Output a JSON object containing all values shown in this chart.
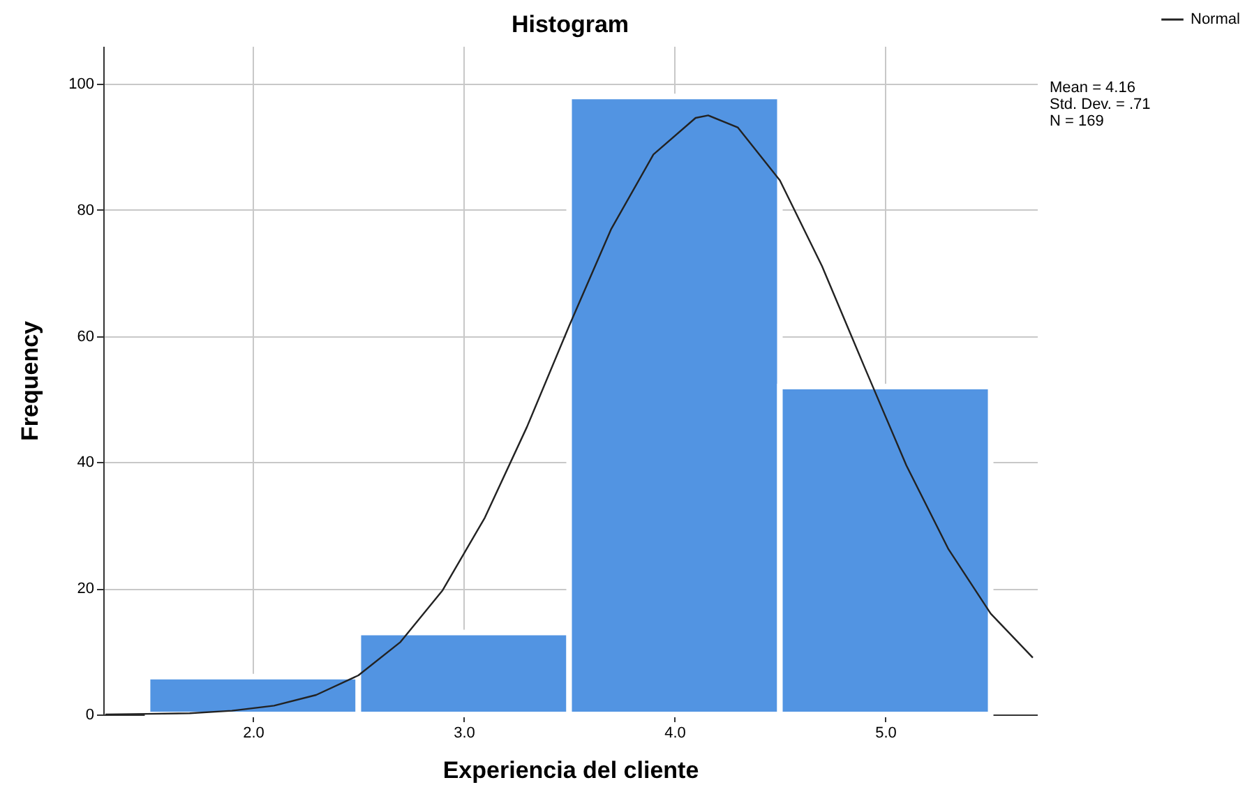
{
  "chart_data": {
    "type": "histogram",
    "title": "Histogram",
    "xlabel": "Experiencia del cliente",
    "ylabel": "Frequency",
    "bins": [
      1.5,
      2.5,
      3.5,
      4.5,
      5.5
    ],
    "values": [
      6,
      13,
      98,
      52
    ],
    "color": "#5294e2",
    "series": [
      {
        "name": "Normal",
        "type": "line",
        "color": "#222222",
        "x": [
          1.3,
          1.5,
          1.7,
          1.9,
          2.1,
          2.3,
          2.5,
          2.7,
          2.9,
          3.1,
          3.3,
          3.5,
          3.7,
          3.9,
          4.1,
          4.16,
          4.3,
          4.5,
          4.7,
          4.9,
          5.1,
          5.3,
          5.5,
          5.7
        ],
        "values": [
          0,
          0.1,
          0.2,
          0.6,
          1.4,
          3.1,
          6.2,
          11.5,
          19.7,
          31.2,
          45.6,
          61.6,
          77.0,
          88.8,
          94.6,
          95.0,
          93.1,
          84.7,
          71.1,
          55.2,
          39.5,
          26.2,
          16.0,
          9.0
        ]
      }
    ],
    "xlim": [
      1.29,
      5.72
    ],
    "xticks": [
      {
        "value": 2,
        "label": "2.0"
      },
      {
        "value": 3,
        "label": "3.0"
      },
      {
        "value": 4,
        "label": "4.0"
      },
      {
        "value": 5,
        "label": "5.0"
      }
    ],
    "ylim": [
      0,
      106
    ],
    "yticks": [
      0,
      20,
      40,
      60,
      80,
      100
    ],
    "grid": true,
    "legend": "top right",
    "line_style": "solid",
    "annotations": [
      "Mean = 4.16",
      "Std. Dev. = .71",
      "N = 169"
    ]
  }
}
